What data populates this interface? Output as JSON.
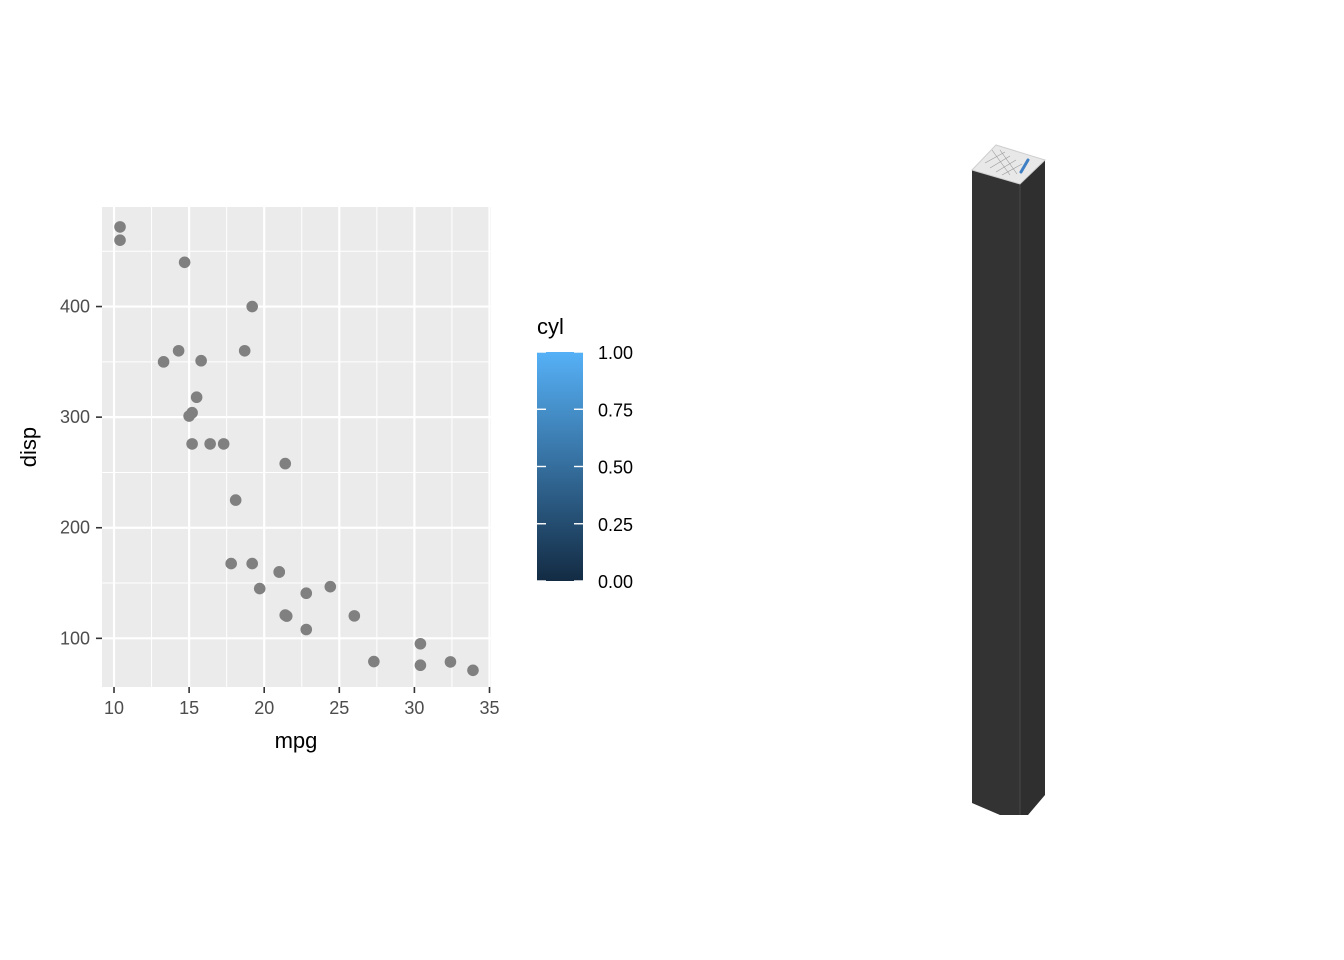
{
  "chart_data": {
    "type": "scatter",
    "xlabel": "mpg",
    "ylabel": "disp",
    "xlim": [
      9.2,
      35.1
    ],
    "ylim": [
      56.0,
      490.0
    ],
    "x_ticks": [
      10,
      15,
      20,
      25,
      30,
      35
    ],
    "y_ticks": [
      100,
      200,
      300,
      400
    ],
    "x_tick_labels": [
      "10",
      "15",
      "20",
      "25",
      "30",
      "35"
    ],
    "y_tick_labels": [
      "100",
      "200",
      "300",
      "400"
    ],
    "grid": true,
    "point_color": "#808080",
    "series": [
      {
        "points": [
          [
            21.0,
            160.0
          ],
          [
            21.0,
            160.0
          ],
          [
            22.8,
            108.0
          ],
          [
            21.4,
            258.0
          ],
          [
            18.7,
            360.0
          ],
          [
            18.1,
            225.0
          ],
          [
            14.3,
            360.0
          ],
          [
            24.4,
            146.7
          ],
          [
            22.8,
            140.8
          ],
          [
            19.2,
            167.6
          ],
          [
            17.8,
            167.6
          ],
          [
            16.4,
            275.8
          ],
          [
            17.3,
            275.8
          ],
          [
            15.2,
            275.8
          ],
          [
            10.4,
            472.0
          ],
          [
            10.4,
            460.0
          ],
          [
            14.7,
            440.0
          ],
          [
            32.4,
            78.7
          ],
          [
            30.4,
            75.7
          ],
          [
            33.9,
            71.1
          ],
          [
            21.5,
            120.1
          ],
          [
            15.5,
            318.0
          ],
          [
            15.2,
            304.0
          ],
          [
            13.3,
            350.0
          ],
          [
            19.2,
            400.0
          ],
          [
            27.3,
            79.0
          ],
          [
            26.0,
            120.3
          ],
          [
            30.4,
            95.1
          ],
          [
            15.8,
            351.0
          ],
          [
            19.7,
            145.0
          ],
          [
            15.0,
            301.0
          ],
          [
            21.4,
            121.0
          ]
        ]
      }
    ],
    "legend": {
      "title": "cyl",
      "type": "colorbar",
      "placement": "right",
      "range": [
        0.0,
        1.0
      ],
      "ticks": [
        0.0,
        0.25,
        0.5,
        0.75,
        1.0
      ],
      "tick_labels": [
        "0.00",
        "0.25",
        "0.50",
        "0.75",
        "1.00"
      ],
      "color_low": "#132B43",
      "color_high": "#56B1F7"
    }
  },
  "colors": {
    "panel_background": "#ebebeb",
    "grid_major": "#ffffff",
    "pillar_front": "#333333",
    "pillar_side": "#2f2f2f",
    "pillar_top": "#e8e8e8"
  }
}
